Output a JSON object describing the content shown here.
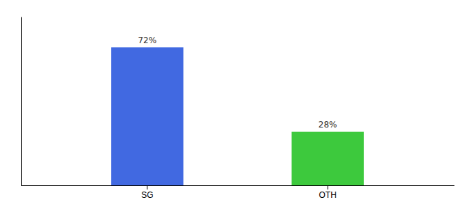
{
  "chart_data": {
    "type": "bar",
    "categories": [
      "SG",
      "OTH"
    ],
    "values": [
      72,
      28
    ],
    "colors": [
      "#4169e1",
      "#3dc93d"
    ],
    "data_labels": true,
    "value_labels": [
      "72%",
      "28%"
    ],
    "ylim": [
      0,
      88
    ],
    "tick_labels": "x"
  }
}
